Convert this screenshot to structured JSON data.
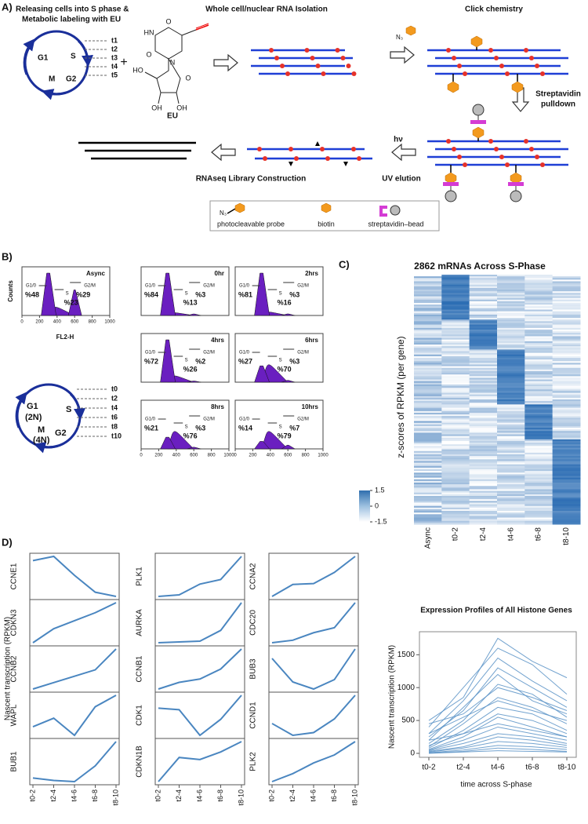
{
  "panel_a": {
    "label": "A)",
    "step1": [
      "Releasing cells into S phase &",
      "Metabolic labeling with EU"
    ],
    "step2": "Whole cell/nuclear RNA Isolation",
    "step3": "Click chemistry",
    "step4": [
      "Streptavidin",
      "pulldown"
    ],
    "uv_symbol": "hν",
    "step5": "UV elution",
    "step6": "RNAseq Library Construction",
    "eu": "EU",
    "plus": "+",
    "eu_atoms": [
      "O",
      "HN",
      "O",
      "N",
      "HO",
      "O",
      "OH",
      "OH"
    ],
    "cycle": [
      "G1",
      "S",
      "M",
      "G2"
    ],
    "timepoints": [
      "t1",
      "t2",
      "t3",
      "t4",
      "t5"
    ],
    "azide": "N₃",
    "legend": [
      "photocleavable probe",
      "biotin",
      "streptavidin–bead"
    ]
  },
  "panel_b": {
    "label": "B)",
    "ylabel": "Counts",
    "xlabel": "FL2-H",
    "xticks": [
      0,
      200,
      400,
      600,
      800,
      1000
    ],
    "gates": [
      "G1/0",
      "S",
      "G2/M"
    ],
    "plots": [
      {
        "name": "Async",
        "values": [
          48,
          23,
          29
        ],
        "value_labels": [
          "%48",
          "%23",
          "%29"
        ]
      },
      {
        "name": "0hr",
        "values": [
          84,
          13,
          3
        ],
        "value_labels": [
          "%84",
          "%13",
          "%3"
        ]
      },
      {
        "name": "2hrs",
        "values": [
          81,
          16,
          3
        ],
        "value_labels": [
          "%81",
          "%16",
          "%3"
        ]
      },
      {
        "name": "4hrs",
        "values": [
          72,
          26,
          2
        ],
        "value_labels": [
          "%72",
          "%26",
          "%2"
        ]
      },
      {
        "name": "6hrs",
        "values": [
          27,
          70,
          3
        ],
        "value_labels": [
          "%27",
          "%70",
          "%3"
        ]
      },
      {
        "name": "8hrs",
        "values": [
          21,
          76,
          3
        ],
        "value_labels": [
          "%21",
          "%76",
          "%3"
        ]
      },
      {
        "name": "10hrs",
        "values": [
          14,
          79,
          7
        ],
        "value_labels": [
          "%14",
          "%79",
          "%7"
        ]
      }
    ],
    "cycle": [
      "G1",
      "(2N)",
      "S",
      "M",
      "(4N)",
      "G2"
    ],
    "timepoints": [
      "t0",
      "t2",
      "t4",
      "t6",
      "t8",
      "t10"
    ]
  },
  "panel_c": {
    "label": "C)",
    "title": "2862 mRNAs Across S-Phase",
    "ylabel": "z-scores of RPKM (per gene)",
    "columns": [
      "Async",
      "t0-2",
      "t2-4",
      "t4-6",
      "t6-8",
      "t8-10"
    ],
    "legend_ticks": [
      1.5,
      0,
      -1.5
    ]
  },
  "panel_d": {
    "label": "D)",
    "ylabel": "Nascent transcription (RPKM)",
    "categories": [
      "t0-2",
      "t2-4",
      "t4-6",
      "t6-8",
      "t8-10"
    ],
    "columns": [
      [
        {
          "name": "CCNE1",
          "values": [
            2.3,
            2.5,
            1.6,
            0.8,
            0.6
          ]
        },
        {
          "name": "CDKN3",
          "values": [
            1.0,
            1.7,
            2.1,
            2.5,
            3.0
          ]
        },
        {
          "name": "CCNB2",
          "values": [
            1.0,
            1.4,
            1.8,
            2.2,
            3.5
          ]
        },
        {
          "name": "WAPL",
          "values": [
            2.8,
            3.1,
            2.5,
            3.5,
            3.9
          ]
        },
        {
          "name": "BUB1",
          "values": [
            2.1,
            2.0,
            1.95,
            2.6,
            3.6
          ]
        }
      ],
      [
        {
          "name": "PLK1",
          "values": [
            1.0,
            1.1,
            1.8,
            2.1,
            3.6
          ]
        },
        {
          "name": "AURKA",
          "values": [
            1.0,
            1.05,
            1.1,
            1.8,
            3.6
          ]
        },
        {
          "name": "CCNB1",
          "values": [
            1.0,
            1.4,
            1.6,
            2.2,
            3.4
          ]
        },
        {
          "name": "CDK1",
          "values": [
            12.8,
            12.7,
            11.1,
            12.1,
            13.6
          ]
        },
        {
          "name": "CDKN1B",
          "values": [
            11.0,
            14.5,
            14.2,
            15.3,
            16.8
          ]
        }
      ],
      [
        {
          "name": "CCNA2",
          "values": [
            14,
            17,
            17.2,
            20,
            24
          ]
        },
        {
          "name": "CDC20",
          "values": [
            10,
            11,
            14,
            16,
            26
          ]
        },
        {
          "name": "BUB3",
          "values": [
            28,
            23,
            21.5,
            23.5,
            30
          ]
        },
        {
          "name": "CCND1",
          "values": [
            65,
            52,
            55,
            70,
            96
          ]
        },
        {
          "name": "PLK2",
          "values": [
            80,
            95,
            115,
            130,
            155
          ]
        }
      ]
    ],
    "histone": {
      "type": "line",
      "title": "Expression Profiles of All Histone Genes",
      "ylabel": "Nascent transcription (RPKM)",
      "xlabel": "time across S-phase",
      "categories": [
        "t0-2",
        "t2-4",
        "t4-6",
        "t6-8",
        "t8-10"
      ],
      "ylim": [
        -60,
        1850
      ],
      "yticks": [
        0,
        500,
        1000,
        1500
      ],
      "color": "#5b93c7",
      "series": [
        {
          "values": [
            500,
            850,
            1750,
            1400,
            1150
          ]
        },
        {
          "values": [
            400,
            1000,
            1600,
            1350,
            900
          ]
        },
        {
          "values": [
            300,
            800,
            1450,
            1100,
            800
          ]
        },
        {
          "values": [
            250,
            650,
            1300,
            1000,
            700
          ]
        },
        {
          "values": [
            200,
            700,
            1200,
            800,
            600
          ]
        },
        {
          "values": [
            450,
            600,
            1000,
            850,
            650
          ]
        },
        {
          "values": [
            150,
            500,
            1050,
            900,
            550
          ]
        },
        {
          "values": [
            100,
            450,
            850,
            700,
            450
          ]
        },
        {
          "values": [
            300,
            550,
            800,
            650,
            500
          ]
        },
        {
          "values": [
            80,
            350,
            700,
            600,
            350
          ]
        },
        {
          "values": [
            120,
            300,
            600,
            500,
            300
          ]
        },
        {
          "values": [
            60,
            250,
            550,
            400,
            250
          ]
        },
        {
          "values": [
            200,
            300,
            450,
            350,
            250
          ]
        },
        {
          "values": [
            50,
            200,
            400,
            300,
            200
          ]
        },
        {
          "values": [
            40,
            150,
            300,
            250,
            150
          ]
        },
        {
          "values": [
            30,
            100,
            250,
            200,
            120
          ]
        },
        {
          "values": [
            20,
            80,
            180,
            150,
            90
          ]
        },
        {
          "values": [
            10,
            50,
            120,
            100,
            60
          ]
        },
        {
          "values": [
            5,
            30,
            80,
            60,
            30
          ]
        },
        {
          "values": [
            0,
            20,
            40,
            30,
            20
          ]
        }
      ]
    }
  }
}
